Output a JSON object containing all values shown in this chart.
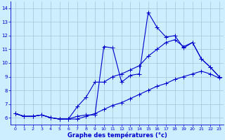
{
  "xlabel": "Graphe des températures (°c)",
  "x": [
    0,
    1,
    2,
    3,
    4,
    5,
    6,
    7,
    8,
    9,
    10,
    11,
    12,
    13,
    14,
    15,
    16,
    17,
    18,
    19,
    20,
    21,
    22,
    23
  ],
  "line1": [
    6.3,
    6.1,
    6.1,
    6.2,
    6.0,
    5.9,
    5.9,
    6.1,
    6.2,
    6.2,
    11.2,
    11.1,
    8.6,
    9.1,
    9.2,
    13.7,
    12.6,
    11.9,
    12.0,
    11.1,
    11.5,
    10.3,
    9.7,
    9.0
  ],
  "line2": [
    6.3,
    6.1,
    6.1,
    6.2,
    6.0,
    5.9,
    5.9,
    6.8,
    7.5,
    8.6,
    8.6,
    9.0,
    9.2,
    9.5,
    9.8,
    10.5,
    11.0,
    11.5,
    11.7,
    11.2,
    11.5,
    10.3,
    9.7,
    9.0
  ],
  "line3": [
    6.3,
    6.1,
    6.1,
    6.2,
    6.0,
    5.9,
    5.9,
    5.9,
    6.1,
    6.3,
    6.6,
    6.9,
    7.1,
    7.4,
    7.7,
    8.0,
    8.3,
    8.5,
    8.8,
    9.0,
    9.2,
    9.4,
    9.2,
    8.9
  ],
  "line_color": "#0000cd",
  "bg_color": "#cceeff",
  "xlim": [
    -0.5,
    23.5
  ],
  "ylim": [
    5.5,
    14.5
  ],
  "yticks": [
    6,
    7,
    8,
    9,
    10,
    11,
    12,
    13,
    14
  ],
  "xticks": [
    0,
    1,
    2,
    3,
    4,
    5,
    6,
    7,
    8,
    9,
    10,
    11,
    12,
    13,
    14,
    15,
    16,
    17,
    18,
    19,
    20,
    21,
    22,
    23
  ]
}
